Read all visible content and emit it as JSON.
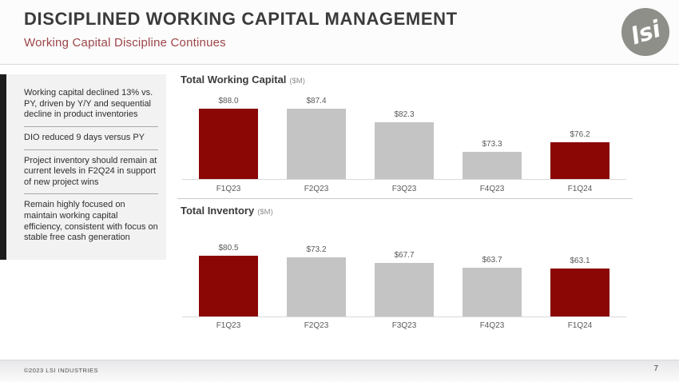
{
  "slide": {
    "title": "DISCIPLINED WORKING CAPITAL MANAGEMENT",
    "subtitle": "Working Capital Discipline Continues",
    "logo_text": "lsi",
    "footer": {
      "copyright": "©2023 LSI INDUSTRIES",
      "page_number": "7"
    }
  },
  "sidebar": {
    "items": [
      {
        "text": "Working capital declined 13% vs. PY, driven by Y/Y and sequential decline in product inventories"
      },
      {
        "text": "DIO reduced 9 days versus PY"
      },
      {
        "text": "Project inventory should remain at current levels in F2Q24 in support of new project wins"
      },
      {
        "text": "Remain highly focused on maintain working capital efficiency, consistent with focus on stable free cash generation"
      }
    ]
  },
  "colors": {
    "accent_red": "#8A0706",
    "bar_gray": "#C4C4C4",
    "subtitle_red": "#9D4549",
    "sidebar_accent": "#1D1D1D",
    "logo_gray": "#8F8F8A"
  },
  "chart_data": [
    {
      "type": "bar",
      "title": "Total Working Capital",
      "unit_label": "($M)",
      "categories": [
        "F1Q23",
        "F2Q23",
        "F3Q23",
        "F4Q23",
        "F1Q24"
      ],
      "values": [
        88.0,
        87.4,
        82.3,
        73.3,
        76.2
      ],
      "labels": [
        "$88.0",
        "$87.4",
        "$82.3",
        "$73.3",
        "$76.2"
      ],
      "bar_colors": [
        "red",
        "gray",
        "gray",
        "gray",
        "red"
      ],
      "ylim": [
        65,
        90
      ],
      "grid": false,
      "legend": false
    },
    {
      "type": "bar",
      "title": "Total Inventory",
      "unit_label": "($M)",
      "categories": [
        "F1Q23",
        "F2Q23",
        "F3Q23",
        "F4Q23",
        "F1Q24"
      ],
      "values": [
        80.5,
        73.2,
        67.7,
        63.7,
        63.1
      ],
      "labels": [
        "$80.5",
        "$73.2",
        "$67.7",
        "$63.7",
        "$63.1"
      ],
      "bar_colors": [
        "red",
        "gray",
        "gray",
        "gray",
        "red"
      ],
      "ylim": [
        20,
        85
      ],
      "grid": false,
      "legend": false
    }
  ]
}
